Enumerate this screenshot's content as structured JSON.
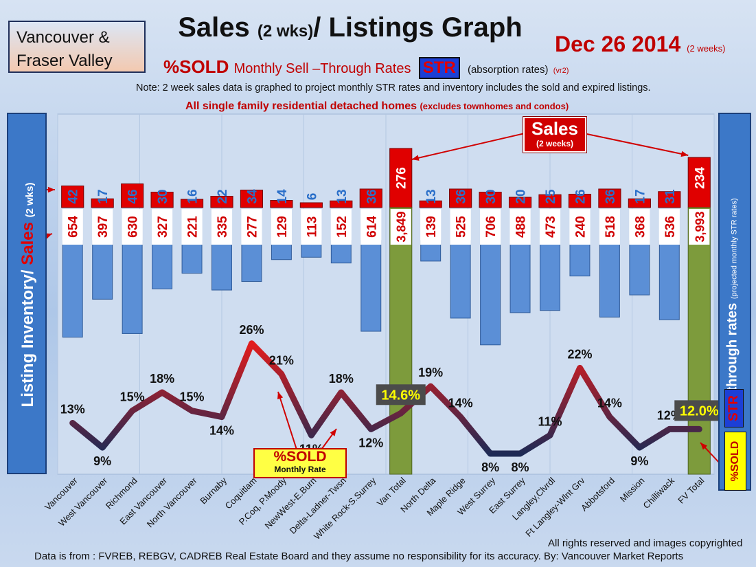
{
  "header": {
    "region": [
      "Vancouver &",
      "Fraser Valley"
    ],
    "title_main": "Sales ",
    "title_paren": "(2 wks)",
    "title_rest": "/ Listings Graph",
    "date": "Dec 26 2014",
    "date_note": "(2 weeks)",
    "sold_label": "%SOLD",
    "monthly_label": "Monthly Sell –Through Rates",
    "str_label": "STR",
    "absorption_label": "(absorption rates)",
    "version": "(vr2)",
    "note": "Note: 2 week sales data is graphed to project monthly STR rates and inventory includes the sold and expired listings.",
    "subtitle": "All single family residential detached homes",
    "subtitle_note": "(excludes townhomes and condos)"
  },
  "left_axis": {
    "inventory": "Listing Inventory/ ",
    "sales": "Sales",
    "suffix": "(2 wks)"
  },
  "right_axis": {
    "main": "Sell-through rates",
    "sub": "(projected monthly STR rates)",
    "str": "STR",
    "sold": "%SOLD"
  },
  "callouts": {
    "sales_big": "Sales",
    "sales_small": "(2 weeks)",
    "sold_big": "%SOLD",
    "sold_small": "Monthly Rate"
  },
  "footer": {
    "rights": "All rights reserved and  images copyrighted",
    "source": "Data is from : FVREB, REBGV, CADREB Real Estate Board and they assume no responsibility for its accuracy. By: Vancouver Market Reports"
  },
  "colors": {
    "sales_bar": "#e00000",
    "inventory_bar": "#5b8fd6",
    "total_bar": "#7d9b3c",
    "line_high": "#e21b1b",
    "line_low": "#1e2a55"
  },
  "chart_data": {
    "type": "bar",
    "categories": [
      "Vancouver",
      "West Vancouver",
      "Richmond",
      "East Vancouver",
      "North Vancouver",
      "Burnaby",
      "Coquitlam",
      "P.Coq, P.Moody",
      "NewWest-E.Burn",
      "Delta-Ladner-Twsn",
      "White Rock-S.Surrey",
      "Van Total",
      "North Delta",
      "Maple Ridge",
      "West Surrey",
      "East Surrey",
      "Langley,Clvrdl",
      "Ft Langley-Wlnt Grv",
      "Abbotsford",
      "Mission",
      "Chilliwack",
      "FV Total"
    ],
    "series": [
      {
        "name": "Sales",
        "values": [
          42,
          17,
          46,
          30,
          16,
          22,
          34,
          14,
          6,
          13,
          36,
          276,
          13,
          36,
          30,
          20,
          25,
          26,
          36,
          17,
          31,
          234
        ]
      },
      {
        "name": "Listing Inventory",
        "values": [
          654,
          397,
          630,
          327,
          221,
          335,
          277,
          129,
          113,
          152,
          614,
          3849,
          139,
          525,
          706,
          488,
          473,
          240,
          518,
          368,
          536,
          3993
        ]
      },
      {
        "name": "%SOLD",
        "values": [
          13,
          9,
          15,
          18,
          15,
          14,
          26,
          21,
          11,
          18,
          12,
          14.6,
          19,
          14,
          8,
          8,
          11,
          22,
          14,
          9,
          12,
          12.0
        ]
      }
    ],
    "sales_labels": [
      "42",
      "17",
      "46",
      "30",
      "16",
      "22",
      "34",
      "14",
      "6",
      "13",
      "36",
      "276",
      "13",
      "36",
      "30",
      "20",
      "25",
      "26",
      "36",
      "17",
      "31",
      "234"
    ],
    "inventory_labels": [
      "654",
      "397",
      "630",
      "327",
      "221",
      "335",
      "277",
      "129",
      "113",
      "152",
      "614",
      "3,849",
      "139",
      "525",
      "706",
      "488",
      "473",
      "240",
      "518",
      "368",
      "536",
      "3,993"
    ],
    "percent_labels": [
      "13%",
      "9%",
      "15%",
      "18%",
      "15%",
      "14%",
      "26%",
      "21%",
      "11%",
      "18%",
      "12%",
      "14.6%",
      "19%",
      "14%",
      "8%",
      "8%",
      "11%",
      "22%",
      "14%",
      "9%",
      "12%",
      "12.0%"
    ],
    "totals": [
      "Van Total",
      "FV Total"
    ]
  }
}
